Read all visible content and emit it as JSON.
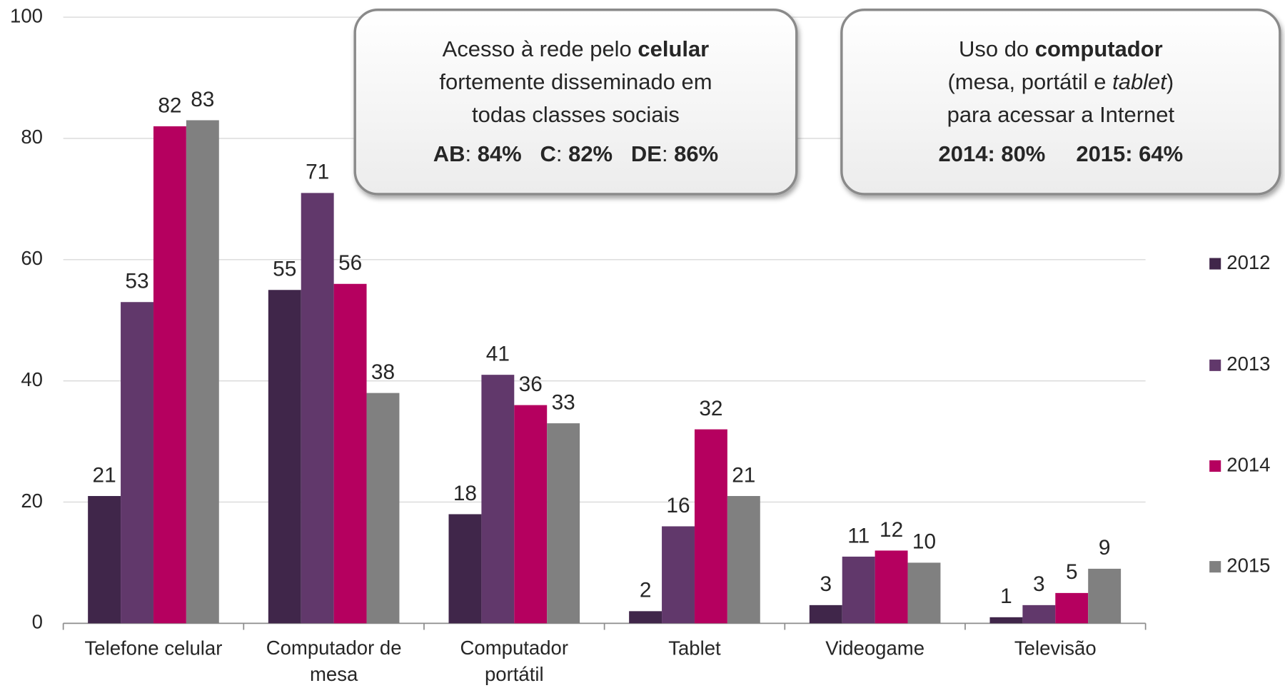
{
  "chart_data": {
    "type": "bar",
    "categories": [
      "Telefone celular",
      "Computador de mesa",
      "Computador portátil",
      "Tablet",
      "Videogame",
      "Televisão"
    ],
    "series": [
      {
        "name": "2012",
        "color": "#40264a",
        "values": [
          21,
          55,
          18,
          2,
          3,
          1
        ]
      },
      {
        "name": "2013",
        "color": "#61386b",
        "values": [
          53,
          71,
          41,
          16,
          11,
          3
        ]
      },
      {
        "name": "2014",
        "color": "#b5005f",
        "values": [
          82,
          56,
          36,
          32,
          12,
          5
        ]
      },
      {
        "name": "2015",
        "color": "#808080",
        "values": [
          83,
          38,
          33,
          21,
          10,
          9
        ]
      }
    ],
    "ylim": [
      0,
      100
    ],
    "yticks": [
      0,
      20,
      40,
      60,
      80,
      100
    ],
    "grid": true,
    "legend": "right",
    "annotations": [
      {
        "lines": [
          [
            {
              "text": "Acesso à rede pelo "
            },
            {
              "text": "celular",
              "bold": true
            }
          ],
          [
            {
              "text": "fortemente disseminado em"
            }
          ],
          [
            {
              "text": "todas classes sociais"
            }
          ],
          [
            {
              "text": "AB",
              "bold": true
            },
            {
              "text": ": "
            },
            {
              "text": "84%",
              "bold": true
            },
            {
              "text": "   C",
              "bold": true
            },
            {
              "text": ": "
            },
            {
              "text": "82%",
              "bold": true
            },
            {
              "text": "   DE",
              "bold": true
            },
            {
              "text": ": "
            },
            {
              "text": "86%",
              "bold": true
            }
          ]
        ]
      },
      {
        "lines": [
          [
            {
              "text": "Uso do "
            },
            {
              "text": "computador",
              "bold": true
            }
          ],
          [
            {
              "text": "(mesa, portátil e "
            },
            {
              "text": "tablet",
              "italic": true
            },
            {
              "text": ")"
            }
          ],
          [
            {
              "text": "para acessar a Internet"
            }
          ],
          [
            {
              "text": "2014: 80%     2015: 64%",
              "bold": true
            }
          ]
        ]
      }
    ]
  }
}
